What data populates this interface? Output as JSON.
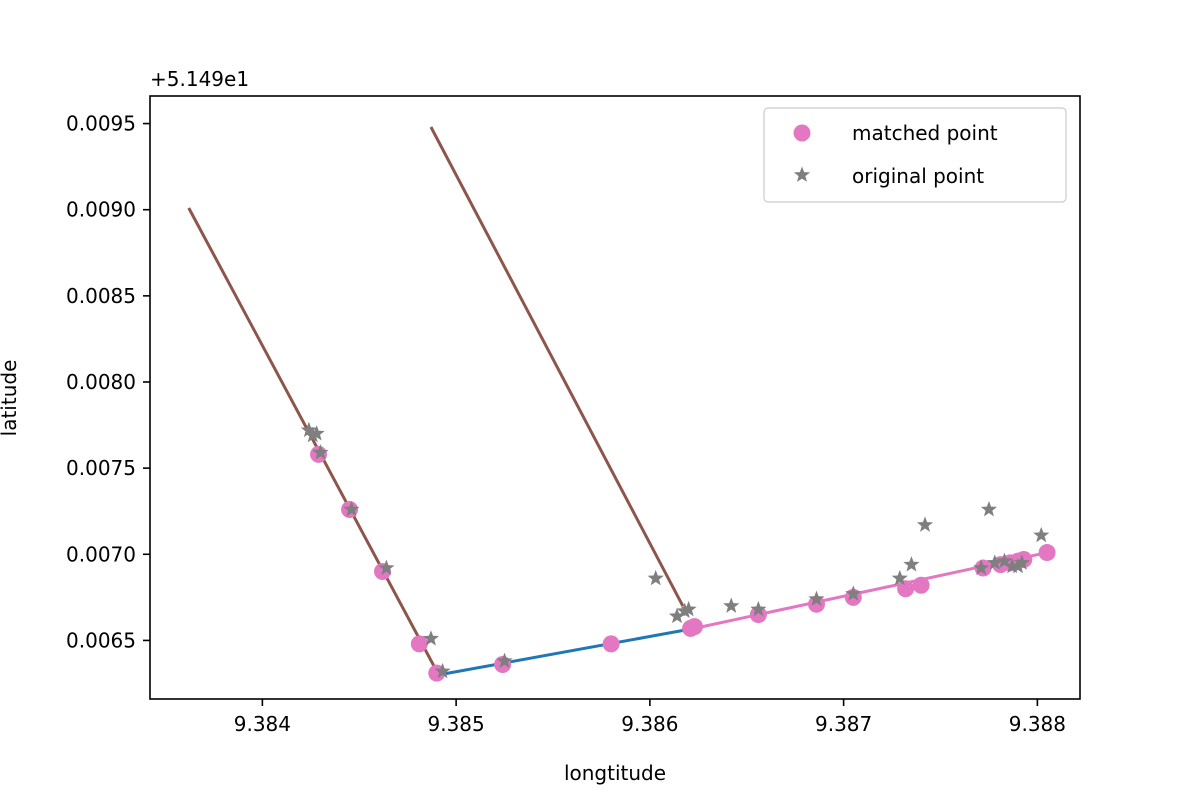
{
  "chart_data": {
    "type": "scatter",
    "title": "",
    "xlabel": "longtitude",
    "ylabel": "latitude",
    "y_offset_label": "+5.149e1",
    "y_offset": 51.49,
    "xlim": [
      9.38342,
      9.38822
    ],
    "ylim": [
      0.00616,
      0.00966
    ],
    "x_ticks": [
      9.384,
      9.385,
      9.386,
      9.387,
      9.388
    ],
    "x_tick_labels": [
      "9.384",
      "9.385",
      "9.386",
      "9.387",
      "9.388"
    ],
    "y_ticks": [
      0.0065,
      0.007,
      0.0075,
      0.008,
      0.0085,
      0.009,
      0.0095
    ],
    "y_tick_labels": [
      "0.0065",
      "0.0070",
      "0.0075",
      "0.0080",
      "0.0085",
      "0.0090",
      "0.0095"
    ],
    "grid": false,
    "legend_position": "top-right",
    "colors": {
      "road_brown": "#8c564b",
      "road_blue": "#1f77b4",
      "matched_pink": "#e377c2",
      "original_gray": "#7f7f7f"
    },
    "road_segments": [
      {
        "x": [
          9.38362,
          9.38491
        ],
        "y": [
          0.00901,
          0.0063
        ]
      },
      {
        "x": [
          9.38487,
          9.38617
        ],
        "y": [
          0.00948,
          0.0067
        ]
      },
      {
        "x": [
          9.38491,
          9.38623
        ],
        "y": [
          0.0063,
          0.00657
        ]
      },
      {
        "x": [
          9.38623,
          9.38805
        ],
        "y": [
          0.00657,
          0.00701
        ]
      }
    ],
    "series": [
      {
        "name": "matched point",
        "marker": "circle",
        "x": [
          9.38429,
          9.38445,
          9.38462,
          9.38481,
          9.3849,
          9.38524,
          9.3858,
          9.38621,
          9.38623,
          9.38656,
          9.38686,
          9.38705,
          9.38732,
          9.3874,
          9.38772,
          9.38781,
          9.38786,
          9.3879,
          9.38793,
          9.38805
        ],
        "y": [
          0.00758,
          0.00726,
          0.0069,
          0.00648,
          0.00631,
          0.00636,
          0.00648,
          0.00657,
          0.00658,
          0.00665,
          0.00671,
          0.00675,
          0.0068,
          0.00682,
          0.00692,
          0.00694,
          0.00695,
          0.00696,
          0.00697,
          0.00701
        ]
      },
      {
        "name": "original point",
        "marker": "star",
        "x": [
          9.38424,
          9.38426,
          9.38428,
          9.3843,
          9.38446,
          9.38464,
          9.38487,
          9.38493,
          9.38525,
          9.38603,
          9.38614,
          9.38618,
          9.3862,
          9.38642,
          9.38656,
          9.38686,
          9.38705,
          9.38729,
          9.38735,
          9.38742,
          9.38771,
          9.38775,
          9.38778,
          9.38783,
          9.38787,
          9.3879,
          9.38792,
          9.38802
        ],
        "y": [
          0.00772,
          0.00769,
          0.0077,
          0.00759,
          0.00726,
          0.00692,
          0.00651,
          0.00632,
          0.00638,
          0.00686,
          0.00664,
          0.00667,
          0.00668,
          0.0067,
          0.00668,
          0.00674,
          0.00677,
          0.00686,
          0.00694,
          0.00717,
          0.00692,
          0.00726,
          0.00695,
          0.00696,
          0.00693,
          0.00693,
          0.00695,
          0.00711
        ]
      }
    ]
  }
}
